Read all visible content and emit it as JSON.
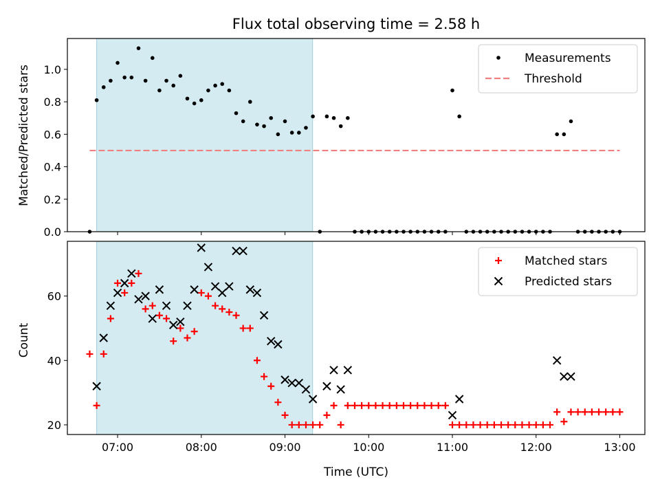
{
  "chart_data": [
    {
      "type": "scatter",
      "title": "Flux total observing time = 2.58 h",
      "xlabel": "",
      "ylabel": "Matched/Predicted stars",
      "xlim_hours": [
        6.4,
        13.3
      ],
      "ylim": [
        0,
        1.19
      ],
      "yticks": [
        0.0,
        0.2,
        0.4,
        0.6,
        0.8,
        1.0
      ],
      "ytick_labels": [
        "0.0",
        "0.2",
        "0.4",
        "0.6",
        "0.8",
        "1.0"
      ],
      "shaded_span_hours": [
        6.75,
        9.33
      ],
      "shade_color": "#add8e6",
      "legend_position": "top-right",
      "series": [
        {
          "name": "Measurements",
          "color": "#000000",
          "marker": "dot",
          "x": [
            "06:40",
            "06:45",
            "06:50",
            "06:55",
            "07:00",
            "07:05",
            "07:10",
            "07:15",
            "07:20",
            "07:25",
            "07:30",
            "07:35",
            "07:40",
            "07:45",
            "07:50",
            "07:55",
            "08:00",
            "08:05",
            "08:10",
            "08:15",
            "08:20",
            "08:25",
            "08:30",
            "08:35",
            "08:40",
            "08:45",
            "08:50",
            "08:55",
            "09:00",
            "09:05",
            "09:10",
            "09:15",
            "09:20",
            "09:25",
            "09:30",
            "09:35",
            "09:40",
            "09:45",
            "09:50",
            "09:55",
            "10:00",
            "10:05",
            "10:10",
            "10:15",
            "10:20",
            "10:25",
            "10:30",
            "10:35",
            "10:40",
            "10:45",
            "10:50",
            "10:55",
            "11:00",
            "11:05",
            "11:10",
            "11:15",
            "11:20",
            "11:25",
            "11:30",
            "11:35",
            "11:40",
            "11:45",
            "11:50",
            "11:55",
            "12:00",
            "12:05",
            "12:10",
            "12:15",
            "12:20",
            "12:25",
            "12:30",
            "12:35",
            "12:40",
            "12:45",
            "12:50",
            "12:55",
            "13:00"
          ],
          "y": [
            0.0,
            0.81,
            0.89,
            0.93,
            1.04,
            0.95,
            0.95,
            1.13,
            0.93,
            1.07,
            0.87,
            0.93,
            0.9,
            0.96,
            0.82,
            0.79,
            0.81,
            0.87,
            0.9,
            0.91,
            0.87,
            0.73,
            0.68,
            0.8,
            0.66,
            0.65,
            0.7,
            0.6,
            0.68,
            0.61,
            0.61,
            0.64,
            0.71,
            0.0,
            0.71,
            0.7,
            0.65,
            0.7,
            0.0,
            0.0,
            0.0,
            0.0,
            0.0,
            0.0,
            0.0,
            0.0,
            0.0,
            0.0,
            0.0,
            0.0,
            0.0,
            0.0,
            0.87,
            0.71,
            0.0,
            0.0,
            0.0,
            0.0,
            0.0,
            0.0,
            0.0,
            0.0,
            0.0,
            0.0,
            0.0,
            0.0,
            0.0,
            0.6,
            0.6,
            0.68,
            0.0,
            0.0,
            0.0,
            0.0,
            0.0,
            0.0,
            0.0
          ]
        },
        {
          "name": "Threshold",
          "color": "#f08080",
          "style": "dashed",
          "x": [
            "06:40",
            "13:00"
          ],
          "y": [
            0.5,
            0.5
          ]
        }
      ]
    },
    {
      "type": "scatter",
      "title": "",
      "xlabel": "Time (UTC)",
      "ylabel": "Count",
      "xlim_hours": [
        6.4,
        13.3
      ],
      "ylim": [
        17,
        77
      ],
      "yticks": [
        20,
        40,
        60
      ],
      "ytick_labels": [
        "20",
        "40",
        "60"
      ],
      "xticks_hours": [
        7,
        8,
        9,
        10,
        11,
        12,
        13
      ],
      "xtick_labels": [
        "07:00",
        "08:00",
        "09:00",
        "10:00",
        "11:00",
        "12:00",
        "13:00"
      ],
      "shaded_span_hours": [
        6.75,
        9.33
      ],
      "shade_color": "#add8e6",
      "legend_position": "top-right",
      "series": [
        {
          "name": "Matched stars",
          "color": "#ff0000",
          "marker": "plus",
          "x": [
            "06:40",
            "06:45",
            "06:50",
            "06:55",
            "07:00",
            "07:05",
            "07:10",
            "07:15",
            "07:20",
            "07:25",
            "07:30",
            "07:35",
            "07:40",
            "07:45",
            "07:50",
            "07:55",
            "08:00",
            "08:05",
            "08:10",
            "08:15",
            "08:20",
            "08:25",
            "08:30",
            "08:35",
            "08:40",
            "08:45",
            "08:50",
            "08:55",
            "09:00",
            "09:05",
            "09:10",
            "09:15",
            "09:20",
            "09:25",
            "09:30",
            "09:35",
            "09:40",
            "09:45",
            "09:50",
            "09:55",
            "10:00",
            "10:05",
            "10:10",
            "10:15",
            "10:20",
            "10:25",
            "10:30",
            "10:35",
            "10:40",
            "10:45",
            "10:50",
            "10:55",
            "11:00",
            "11:05",
            "11:10",
            "11:15",
            "11:20",
            "11:25",
            "11:30",
            "11:35",
            "11:40",
            "11:45",
            "11:50",
            "11:55",
            "12:00",
            "12:05",
            "12:10",
            "12:15",
            "12:20",
            "12:25",
            "12:30",
            "12:35",
            "12:40",
            "12:45",
            "12:50",
            "12:55",
            "13:00"
          ],
          "y": [
            42,
            26,
            42,
            53,
            64,
            61,
            64,
            67,
            56,
            57,
            54,
            53,
            46,
            50,
            47,
            49,
            61,
            60,
            57,
            56,
            55,
            54,
            50,
            50,
            40,
            35,
            32,
            27,
            23,
            20,
            20,
            20,
            20,
            20,
            23,
            26,
            20,
            26,
            26,
            26,
            26,
            26,
            26,
            26,
            26,
            26,
            26,
            26,
            26,
            26,
            26,
            26,
            20,
            20,
            20,
            20,
            20,
            20,
            20,
            20,
            20,
            20,
            20,
            20,
            20,
            20,
            20,
            24,
            21,
            24,
            24,
            24,
            24,
            24,
            24,
            24,
            24
          ]
        },
        {
          "name": "Predicted stars",
          "color": "#000000",
          "marker": "cross",
          "x": [
            "06:45",
            "06:50",
            "06:55",
            "07:00",
            "07:05",
            "07:10",
            "07:15",
            "07:20",
            "07:25",
            "07:30",
            "07:35",
            "07:40",
            "07:45",
            "07:50",
            "07:55",
            "08:00",
            "08:05",
            "08:10",
            "08:15",
            "08:20",
            "08:25",
            "08:30",
            "08:35",
            "08:40",
            "08:45",
            "08:50",
            "08:55",
            "09:00",
            "09:05",
            "09:10",
            "09:15",
            "09:20",
            "09:30",
            "09:35",
            "09:40",
            "09:45",
            "11:00",
            "11:05",
            "12:15",
            "12:20",
            "12:25"
          ],
          "y": [
            32,
            47,
            57,
            61,
            64,
            67,
            59,
            60,
            53,
            62,
            57,
            51,
            52,
            57,
            62,
            75,
            69,
            63,
            61,
            63,
            74,
            74,
            62,
            61,
            54,
            46,
            45,
            34,
            33,
            33,
            31,
            28,
            32,
            37,
            31,
            37,
            23,
            28,
            40,
            35,
            35
          ]
        }
      ]
    }
  ]
}
